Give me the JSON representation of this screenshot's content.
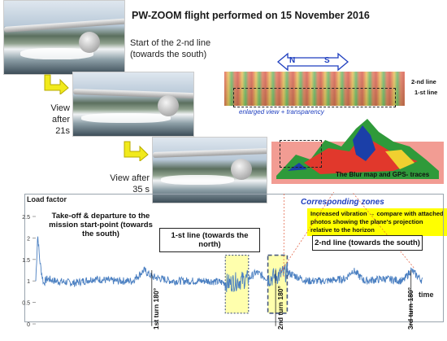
{
  "header": {
    "title": "PW-ZOOM flight performed on 15 November 2016"
  },
  "photos": {
    "start_caption_line1": "Start of the 2-nd line",
    "start_caption_line2": "(towards the south)",
    "view21_line1": "View after",
    "view21_line2": "21s",
    "view35_line1": "View after",
    "view35_line2": "35 s"
  },
  "blur_map": {
    "direction_n": "N",
    "direction_s": "S",
    "line2_label": "2-nd line",
    "line1_label": "1-st line",
    "enlarged_label": "enlarged view + transparency",
    "map_caption": "The Blur map and GPS- traces",
    "corresponding_label": "Corresponding zones",
    "note": "Increased vibration → compare with attached photos showing the plane's projection relative to the horizon"
  },
  "colors": {
    "series": "#4a7fc1",
    "zone": "#ffff99",
    "accent_blue": "#1f3fbf",
    "note_bg": "#ffff00"
  },
  "chart_data": {
    "type": "line",
    "title": "",
    "ylabel": "Load factor",
    "xlabel": "time",
    "ylim": [
      0,
      2.5
    ],
    "yticks": [
      "0",
      "0.5",
      "1",
      "1.5",
      "2",
      "2.5"
    ],
    "baseline": 1.0,
    "series": [
      {
        "points_t": [
          0,
          0.5,
          1,
          1.5,
          2,
          3,
          5,
          10,
          15,
          20,
          25,
          28,
          30,
          35,
          40,
          45,
          50,
          55,
          57,
          60,
          65,
          70,
          75,
          80,
          82,
          85,
          90,
          95,
          97,
          100
        ],
        "points_v": [
          1.0,
          2.1,
          1.5,
          1.2,
          0.95,
          1.05,
          1.0,
          0.95,
          1.05,
          1.0,
          1.0,
          1.25,
          1.1,
          1.0,
          1.0,
          1.0,
          0.95,
          1.05,
          1.2,
          1.05,
          1.2,
          1.0,
          1.0,
          1.05,
          1.25,
          1.0,
          1.05,
          1.0,
          1.25,
          1.0
        ]
      }
    ],
    "annotations": [
      {
        "text": "Take-off & departure to the mission start-point (towards the south)"
      },
      {
        "text": "1-st line (towards the north)"
      },
      {
        "text": "2-nd line (towards the south)"
      }
    ],
    "turns": [
      "1st turn 180°",
      "2nd turn 180°",
      "3rd turn 180°"
    ],
    "highlight_zones_t": [
      [
        49,
        55
      ],
      [
        60,
        65
      ]
    ]
  }
}
